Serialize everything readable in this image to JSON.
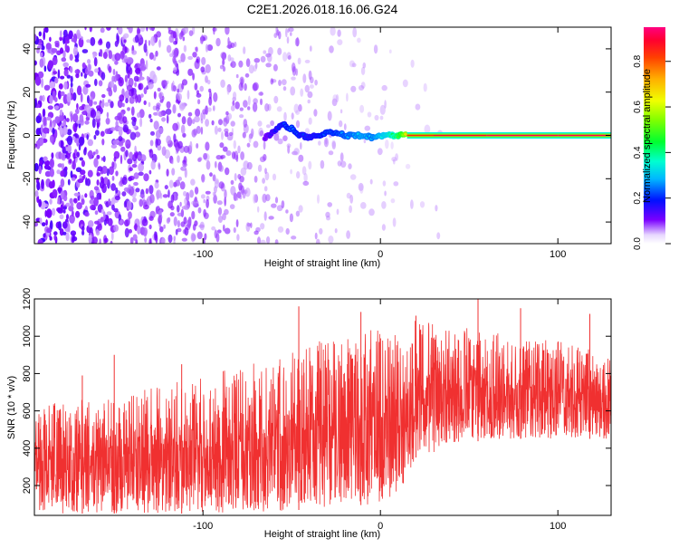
{
  "title": "C2E1.2026.018.16.06.G24",
  "chart_data": [
    {
      "type": "heatmap",
      "xlabel": "Height of straight line (km)",
      "ylabel": "Frequency (Hz)",
      "xlim": [
        -195,
        130
      ],
      "ylim": [
        -50,
        50
      ],
      "x_ticks": [
        -100,
        0,
        100
      ],
      "x_tick_labels": [
        "-100",
        "0",
        "100"
      ],
      "y_ticks": [
        -40,
        -20,
        0,
        20,
        40
      ],
      "y_tick_labels": [
        "-40",
        "-20",
        "0",
        "20",
        "40"
      ],
      "colorbar": {
        "label": "Normalized spectral amplitude",
        "range": [
          0,
          0.95
        ],
        "ticks": [
          0,
          0.2,
          0.4,
          0.6,
          0.8
        ],
        "tick_labels": [
          "0.0",
          "0.2",
          "0.4",
          "0.6",
          "0.8"
        ]
      },
      "noise_floor": {
        "x_range": [
          -195,
          10
        ],
        "y_range": [
          -50,
          50
        ],
        "amplitude": [
          0.05,
          0.15
        ]
      },
      "signal_line": {
        "points": [
          {
            "x": -65,
            "y": -1,
            "a": 0.12
          },
          {
            "x": -60,
            "y": 2,
            "a": 0.18
          },
          {
            "x": -55,
            "y": 5,
            "a": 0.22
          },
          {
            "x": -50,
            "y": 3,
            "a": 0.25
          },
          {
            "x": -45,
            "y": 0,
            "a": 0.22
          },
          {
            "x": -40,
            "y": -1,
            "a": 0.2
          },
          {
            "x": -35,
            "y": 0,
            "a": 0.22
          },
          {
            "x": -30,
            "y": 1,
            "a": 0.25
          },
          {
            "x": -25,
            "y": 1,
            "a": 0.25
          },
          {
            "x": -20,
            "y": 0,
            "a": 0.28
          },
          {
            "x": -15,
            "y": 0,
            "a": 0.3
          },
          {
            "x": -10,
            "y": 0,
            "a": 0.33
          },
          {
            "x": -5,
            "y": -1,
            "a": 0.3
          },
          {
            "x": 0,
            "y": 0,
            "a": 0.35
          },
          {
            "x": 5,
            "y": 0,
            "a": 0.4
          },
          {
            "x": 10,
            "y": 0,
            "a": 0.5
          },
          {
            "x": 15,
            "y": 0,
            "a": 0.7
          },
          {
            "x": 30,
            "y": 0,
            "a": 0.85
          },
          {
            "x": 60,
            "y": 0,
            "a": 0.9
          },
          {
            "x": 100,
            "y": 0,
            "a": 0.92
          },
          {
            "x": 130,
            "y": 0,
            "a": 0.92
          }
        ]
      }
    },
    {
      "type": "line",
      "xlabel": "Height of straight line (km)",
      "ylabel": "SNR (10 * v/v)",
      "xlim": [
        -195,
        130
      ],
      "ylim": [
        40,
        1200
      ],
      "x_ticks": [
        -100,
        0,
        100
      ],
      "x_tick_labels": [
        "-100",
        "0",
        "100"
      ],
      "y_ticks": [
        200,
        400,
        600,
        800,
        1000,
        1200
      ],
      "y_tick_labels": [
        "200",
        "400",
        "600",
        "800",
        "1000",
        "1200"
      ],
      "series": [
        {
          "color": "#f03030",
          "envelope": [
            {
              "x": -195,
              "low": 50,
              "high": 600
            },
            {
              "x": -150,
              "low": 50,
              "high": 650
            },
            {
              "x": -100,
              "low": 50,
              "high": 750
            },
            {
              "x": -60,
              "low": 60,
              "high": 850
            },
            {
              "x": -30,
              "low": 80,
              "high": 950
            },
            {
              "x": -5,
              "low": 100,
              "high": 1000
            },
            {
              "x": 10,
              "low": 150,
              "high": 1000
            },
            {
              "x": 20,
              "low": 350,
              "high": 1050
            },
            {
              "x": 60,
              "low": 450,
              "high": 1000
            },
            {
              "x": 100,
              "low": 450,
              "high": 950
            },
            {
              "x": 130,
              "low": 450,
              "high": 900
            }
          ],
          "peaks": [
            {
              "x": -168,
              "y": 790
            },
            {
              "x": -150,
              "y": 900
            },
            {
              "x": -112,
              "y": 850
            },
            {
              "x": -46,
              "y": 1160
            },
            {
              "x": -11,
              "y": 1130
            },
            {
              "x": 20,
              "y": 1110
            },
            {
              "x": 55,
              "y": 1200
            },
            {
              "x": 79,
              "y": 1150
            },
            {
              "x": 118,
              "y": 1120
            }
          ]
        }
      ]
    }
  ]
}
